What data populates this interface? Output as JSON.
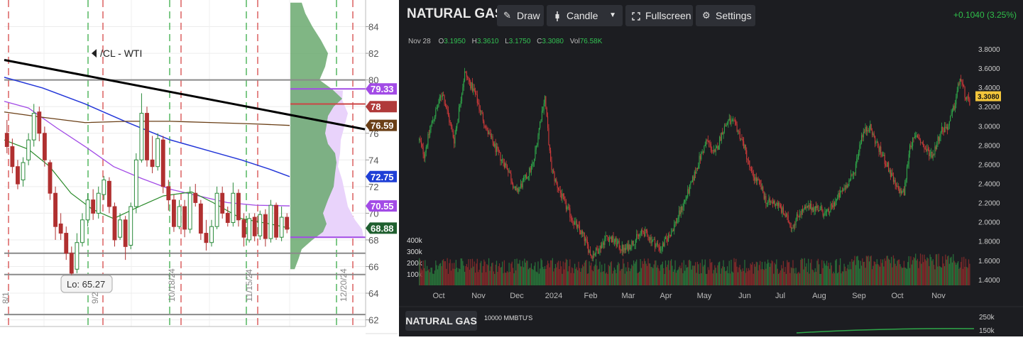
{
  "left_panel": {
    "chart_data": {
      "type": "candlestick",
      "title": "/CL - WTI",
      "ylim": [
        61.5,
        86
      ],
      "y_ticks": [
        62,
        64,
        66,
        68,
        70,
        72,
        74,
        76,
        78,
        80,
        82,
        84
      ],
      "x_ticks": [
        "10/18/24",
        "11/15/24",
        "12/20/24"
      ],
      "partial_x_ticks": [
        "9/2",
        "8/1"
      ],
      "price_labels": [
        {
          "value": 79.33,
          "text": "79.33",
          "color": "#a24be6"
        },
        {
          "value": 78,
          "text": "78",
          "color": "#b03a3a"
        },
        {
          "value": 76.59,
          "text": "76.59",
          "color": "#6a3f16"
        },
        {
          "value": 72.75,
          "text": "72.75",
          "color": "#1f3fd6"
        },
        {
          "value": 70.55,
          "text": "70.55",
          "color": "#a24be6"
        },
        {
          "value": 68.88,
          "text": "68.88",
          "color": "#1f5f2f"
        }
      ],
      "horizontal_levels": [
        80,
        67,
        65.4,
        62.4
      ],
      "annotation": {
        "text": "Lo: 65.27",
        "value": 65.27
      },
      "trendline": {
        "from": 81.5,
        "to": 76.3
      },
      "candles": [
        [
          76,
          75,
          77,
          74.5
        ],
        [
          75,
          73.5,
          75.6,
          73
        ],
        [
          73.5,
          72.2,
          74,
          71.8
        ],
        [
          72.5,
          73.8,
          74.2,
          72
        ],
        [
          74,
          75.5,
          76,
          73.6
        ],
        [
          75.5,
          77.5,
          78.2,
          75
        ],
        [
          77.6,
          76,
          78,
          75.4
        ],
        [
          76,
          74,
          76.5,
          73.5
        ],
        [
          73.8,
          71.5,
          74,
          71
        ],
        [
          71.5,
          69,
          72,
          68
        ],
        [
          69.2,
          68.5,
          70,
          68
        ],
        [
          68.5,
          67,
          69,
          66.5
        ],
        [
          67,
          65.5,
          67.5,
          65.27
        ],
        [
          65.8,
          67.8,
          68.5,
          65.5
        ],
        [
          67.8,
          69.5,
          70,
          67.5
        ],
        [
          69.5,
          71,
          71.5,
          69
        ],
        [
          71,
          70,
          71.8,
          69.5
        ],
        [
          70,
          71.5,
          72,
          69.6
        ],
        [
          71.4,
          72.5,
          72.8,
          71
        ],
        [
          72.4,
          70.5,
          72.7,
          70
        ],
        [
          70.5,
          68,
          70.8,
          67.5
        ],
        [
          68.2,
          69.5,
          70,
          68
        ],
        [
          69.5,
          67.5,
          69.8,
          66.5
        ],
        [
          67.6,
          70.5,
          70.8,
          67.3
        ],
        [
          70.5,
          74,
          74.5,
          70
        ],
        [
          74,
          77.5,
          79,
          73.8
        ],
        [
          77.5,
          74,
          78,
          73.5
        ],
        [
          74,
          73.5,
          75.8,
          73
        ],
        [
          73.5,
          75.6,
          76,
          73.2
        ],
        [
          75.5,
          72,
          75.8,
          71.5
        ],
        [
          72,
          71,
          72.5,
          70.2
        ],
        [
          71,
          69,
          71.4,
          68.6
        ],
        [
          69,
          70.5,
          71,
          68.8
        ],
        [
          70.5,
          68.8,
          71,
          68.2
        ],
        [
          68.8,
          71.5,
          72,
          68.5
        ],
        [
          71.5,
          70.8,
          72.2,
          70.5
        ],
        [
          70.7,
          68.5,
          71,
          68
        ],
        [
          68.5,
          67.8,
          69.5,
          67.2
        ],
        [
          67.8,
          69,
          69.5,
          67.5
        ],
        [
          69,
          71.5,
          72,
          68.8
        ],
        [
          71.5,
          70,
          72,
          69.6
        ],
        [
          70,
          69.3,
          70.5,
          69
        ],
        [
          69.3,
          71.5,
          72.3,
          69
        ],
        [
          71.5,
          69.5,
          71.8,
          69
        ],
        [
          69.5,
          68.2,
          70,
          67.5
        ],
        [
          68,
          69.6,
          70,
          67.8
        ],
        [
          69.7,
          68.3,
          70,
          67.9
        ],
        [
          68.3,
          69.9,
          70.2,
          68
        ],
        [
          69.9,
          68.1,
          70.3,
          67.5
        ],
        [
          68.1,
          70.6,
          71,
          67.8
        ],
        [
          70.6,
          68.2,
          70.8,
          68
        ],
        [
          68.2,
          69.7,
          70.5,
          67.9
        ],
        [
          69.7,
          68.8,
          70,
          68.5
        ]
      ],
      "volume_profile_note": "horizontal profile at right edge"
    }
  },
  "right_panel": {
    "toolbar": {
      "title": "NATURAL GAS",
      "draw_label": "Draw",
      "candle_label": "Candle",
      "fullscreen_label": "Fullscreen",
      "settings_label": "Settings",
      "draw_icon": "pencil-icon",
      "candle_icon": "candle-icon",
      "dropdown_icon": "caret-down-icon",
      "fullscreen_icon": "expand-icon",
      "settings_icon": "gear-icon"
    },
    "change_text": "+0.1040 (3.25%)",
    "ohlc": {
      "date": "Nov 28",
      "o_label": "O",
      "o_value": "3.1950",
      "h_label": "H",
      "h_value": "3.3610",
      "l_label": "L",
      "l_value": "3.1750",
      "c_label": "C",
      "c_value": "3.3080",
      "vol_label": "Vol",
      "vol_value": "76.58K"
    },
    "bottom_label": "NATURAL GAS",
    "bottom_unit": "10000 MMBTU'S",
    "chart_data": {
      "type": "candlestick",
      "ylim": [
        1.34,
        3.94
      ],
      "y_ticks": [
        "3.8000",
        "3.6000",
        "3.4000",
        "3.2000",
        "3.0000",
        "2.8000",
        "2.6000",
        "2.4000",
        "2.2000",
        "2.0000",
        "1.8000",
        "1.6000",
        "1.4000"
      ],
      "current_price_label": "3.3080",
      "current_price": 3.308,
      "x_ticks": [
        "Oct",
        "Nov",
        "Dec",
        "2024",
        "Feb",
        "Mar",
        "Apr",
        "May",
        "Jun",
        "Jul",
        "Aug",
        "Sep",
        "Oct",
        "Nov"
      ],
      "volume_ticks": [
        "400k",
        "300k",
        "200k",
        "100k"
      ],
      "volume_ylim": [
        0,
        450
      ],
      "lower_axis_ticks": [
        "250k",
        "150k"
      ],
      "anchors": [
        [
          0,
          2.85
        ],
        [
          5,
          2.7
        ],
        [
          12,
          3.0
        ],
        [
          24,
          3.35
        ],
        [
          36,
          2.85
        ],
        [
          47,
          3.55
        ],
        [
          57,
          3.35
        ],
        [
          70,
          2.95
        ],
        [
          82,
          2.7
        ],
        [
          92,
          2.55
        ],
        [
          100,
          2.3
        ],
        [
          110,
          2.45
        ],
        [
          118,
          2.6
        ],
        [
          126,
          3.1
        ],
        [
          130,
          3.3
        ],
        [
          136,
          2.6
        ],
        [
          140,
          2.45
        ],
        [
          150,
          2.2
        ],
        [
          160,
          2.0
        ],
        [
          170,
          1.85
        ],
        [
          178,
          1.65
        ],
        [
          186,
          1.72
        ],
        [
          194,
          1.85
        ],
        [
          202,
          1.8
        ],
        [
          212,
          1.7
        ],
        [
          222,
          1.8
        ],
        [
          232,
          1.9
        ],
        [
          242,
          1.8
        ],
        [
          250,
          1.72
        ],
        [
          258,
          1.85
        ],
        [
          262,
          1.92
        ],
        [
          270,
          2.1
        ],
        [
          282,
          2.4
        ],
        [
          290,
          2.65
        ],
        [
          298,
          2.85
        ],
        [
          306,
          2.7
        ],
        [
          314,
          2.95
        ],
        [
          320,
          3.05
        ],
        [
          328,
          3.0
        ],
        [
          336,
          2.8
        ],
        [
          344,
          2.5
        ],
        [
          352,
          2.4
        ],
        [
          360,
          2.2
        ],
        [
          370,
          2.2
        ],
        [
          378,
          2.08
        ],
        [
          386,
          1.95
        ],
        [
          394,
          2.1
        ],
        [
          404,
          2.15
        ],
        [
          412,
          2.15
        ],
        [
          422,
          2.08
        ],
        [
          430,
          2.2
        ],
        [
          440,
          2.35
        ],
        [
          450,
          2.5
        ],
        [
          458,
          2.9
        ],
        [
          466,
          3.0
        ],
        [
          474,
          2.8
        ],
        [
          484,
          2.6
        ],
        [
          494,
          2.35
        ],
        [
          502,
          2.3
        ],
        [
          508,
          2.8
        ],
        [
          516,
          2.9
        ],
        [
          524,
          2.75
        ],
        [
          532,
          2.7
        ],
        [
          540,
          2.95
        ],
        [
          548,
          3.0
        ],
        [
          554,
          3.2
        ],
        [
          560,
          3.5
        ],
        [
          566,
          3.3
        ],
        [
          570,
          3.22
        ]
      ]
    }
  }
}
